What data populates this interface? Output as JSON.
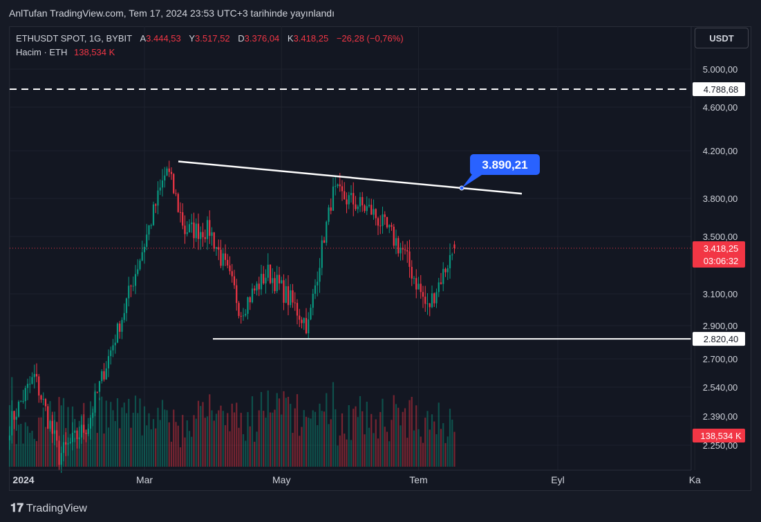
{
  "header": {
    "published": "AnlTufan TradingView.com, Tem 17, 2024 23:53 UTC+3 tarihinde yayınlandı"
  },
  "legend": {
    "symbol": "ETHUSDT SPOT, 1G, BYBIT",
    "open_label": "A",
    "open": "3.444,53",
    "high_label": "Y",
    "high": "3.517,52",
    "low_label": "D",
    "low": "3.376,04",
    "close_label": "K",
    "close": "3.418,25",
    "change": "−26,28 (−0,76%)",
    "volume_label": "Hacim · ETH",
    "volume": "138,534 K"
  },
  "currency_button": "USDT",
  "footer": {
    "brand": "TradingView"
  },
  "colors": {
    "up": "#089981",
    "down": "#f23645",
    "background": "#131722",
    "callout": "#2962ff",
    "trendline": "#ffffff"
  },
  "chart_data": {
    "type": "candlestick",
    "symbol": "ETHUSDT",
    "interval": "1D",
    "price_axis_ticks": [
      "5.000,00",
      "4.600,00",
      "4.200,00",
      "3.800,00",
      "3.500,00",
      "3.100,00",
      "2.900,00",
      "2.700,00",
      "2.540,00",
      "2.390,00",
      "2.250,00"
    ],
    "price_axis_values": [
      5000,
      4600,
      4200,
      3800,
      3500,
      3100,
      2900,
      2700,
      2540,
      2390,
      2250
    ],
    "time_axis_labels": [
      "2024",
      "Mar",
      "May",
      "Tem",
      "Eyl",
      "Ka"
    ],
    "last_price": {
      "value": 3418.25,
      "label": "3.418,25",
      "countdown": "03:06:32"
    },
    "resistance_dashed": {
      "value": 4788.68,
      "label": "4.788,68"
    },
    "support_line": {
      "value": 2820.4,
      "label": "2.820,40"
    },
    "volume_last": {
      "label": "138,534 K"
    },
    "trendline": {
      "start_price": 4110,
      "end_price": 3840,
      "callout_price": 3890.21,
      "callout_label": "3.890,21"
    },
    "key_points": [
      {
        "x": "2024-01-01",
        "close": 2350
      },
      {
        "x": "2024-01-12",
        "close": 2600
      },
      {
        "x": "2024-01-23",
        "close": 2200
      },
      {
        "x": "2024-02-05",
        "close": 2350
      },
      {
        "x": "2024-02-20",
        "close": 2950
      },
      {
        "x": "2024-03-01",
        "close": 3450
      },
      {
        "x": "2024-03-11",
        "close": 4050
      },
      {
        "x": "2024-03-19",
        "close": 3550
      },
      {
        "x": "2024-03-30",
        "close": 3550
      },
      {
        "x": "2024-04-13",
        "close": 3000
      },
      {
        "x": "2024-04-25",
        "close": 3250
      },
      {
        "x": "2024-05-13",
        "close": 2900
      },
      {
        "x": "2024-05-24",
        "close": 3850
      },
      {
        "x": "2024-06-10",
        "close": 3700
      },
      {
        "x": "2024-06-24",
        "close": 3400
      },
      {
        "x": "2024-07-05",
        "close": 3000
      },
      {
        "x": "2024-07-17",
        "close": 3418
      }
    ]
  }
}
